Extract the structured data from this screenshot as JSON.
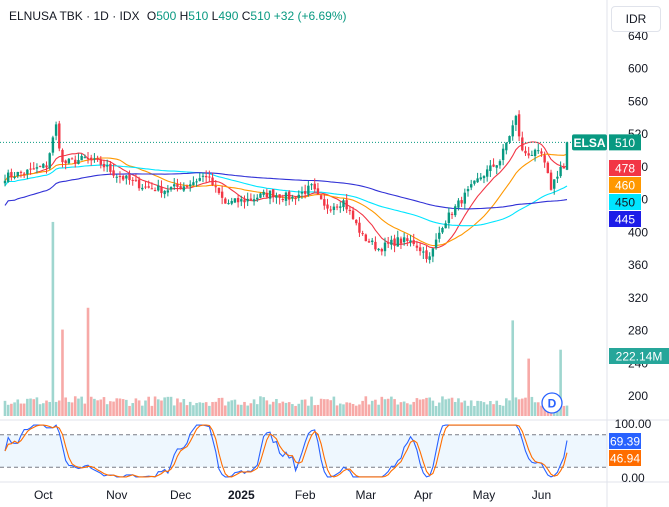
{
  "legend": {
    "symbol": "ELNUSA TBK",
    "interval": "1D",
    "exchange": "IDX",
    "open_label": "O",
    "open": "500",
    "high_label": "H",
    "high": "510",
    "low_label": "L",
    "low": "490",
    "close_label": "C",
    "close": "510",
    "change": "+32 (+6.69%)"
  },
  "currency": "IDR",
  "colors": {
    "up": "#089981",
    "down": "#f23645",
    "vol_up": "#9fd6cf",
    "vol_down": "#f7a9a7",
    "ma_red": "#f23645",
    "ma_orange": "#ff9800",
    "ma_cyan": "#00e5ff",
    "ma_navy": "#3131d6",
    "stoch_k": "#2962ff",
    "stoch_d": "#ff6d00",
    "axis_text": "#131722"
  },
  "chart_data": {
    "type": "candlestick",
    "price_axis": {
      "ticks": [
        "640",
        "600",
        "560",
        "520",
        "480",
        "440",
        "400",
        "360",
        "320",
        "280",
        "240",
        "200"
      ],
      "ylim": [
        193,
        641
      ]
    },
    "time_axis": {
      "labels": [
        {
          "text": "Oct",
          "index": 12
        },
        {
          "text": "Nov",
          "index": 35
        },
        {
          "text": "Dec",
          "index": 55
        },
        {
          "text": "2025",
          "index": 74
        },
        {
          "text": "Feb",
          "index": 94
        },
        {
          "text": "Mar",
          "index": 113
        },
        {
          "text": "Apr",
          "index": 131
        },
        {
          "text": "May",
          "index": 150
        },
        {
          "text": "Jun",
          "index": 168
        }
      ]
    },
    "price_anchors": [
      [
        0,
        468
      ],
      [
        8,
        475
      ],
      [
        13,
        482
      ],
      [
        16,
        530
      ],
      [
        18,
        484
      ],
      [
        25,
        490
      ],
      [
        30,
        484
      ],
      [
        35,
        470
      ],
      [
        44,
        455
      ],
      [
        50,
        452
      ],
      [
        57,
        458
      ],
      [
        63,
        470
      ],
      [
        69,
        435
      ],
      [
        76,
        440
      ],
      [
        83,
        448
      ],
      [
        90,
        442
      ],
      [
        96,
        455
      ],
      [
        100,
        430
      ],
      [
        106,
        438
      ],
      [
        112,
        395
      ],
      [
        117,
        380
      ],
      [
        123,
        390
      ],
      [
        128,
        388
      ],
      [
        133,
        368
      ],
      [
        137,
        410
      ],
      [
        143,
        440
      ],
      [
        149,
        468
      ],
      [
        155,
        488
      ],
      [
        160,
        540
      ],
      [
        162,
        498
      ],
      [
        168,
        495
      ],
      [
        171,
        455
      ],
      [
        174,
        480
      ],
      [
        176,
        510
      ]
    ],
    "current_price_line": 510,
    "volume_spikes": [
      [
        15,
        5.3
      ],
      [
        18,
        2.0
      ],
      [
        26,
        2.4
      ],
      [
        159,
        2.3
      ],
      [
        164,
        1.8
      ],
      [
        174,
        2.4
      ]
    ],
    "ma_levels": [
      {
        "name": "MA red",
        "value": 478
      },
      {
        "name": "MA orange",
        "value": 460
      },
      {
        "name": "MA cyan",
        "value": 450
      },
      {
        "name": "MA navy",
        "value": 445
      }
    ],
    "volume_last": "222.14M",
    "stochastic": {
      "ticks": [
        "100.00",
        "0.00"
      ],
      "bands": [
        80,
        20
      ],
      "k_last": 69.39,
      "d_last": 46.94
    }
  },
  "badges": {
    "symbol_tag": "ELSA",
    "price": "510",
    "ma1": "478",
    "ma2": "460",
    "ma3": "450",
    "ma4": "445",
    "volume": "222.14M",
    "stoch_k": "69.39",
    "stoch_d": "46.94"
  },
  "goto_label": "D"
}
